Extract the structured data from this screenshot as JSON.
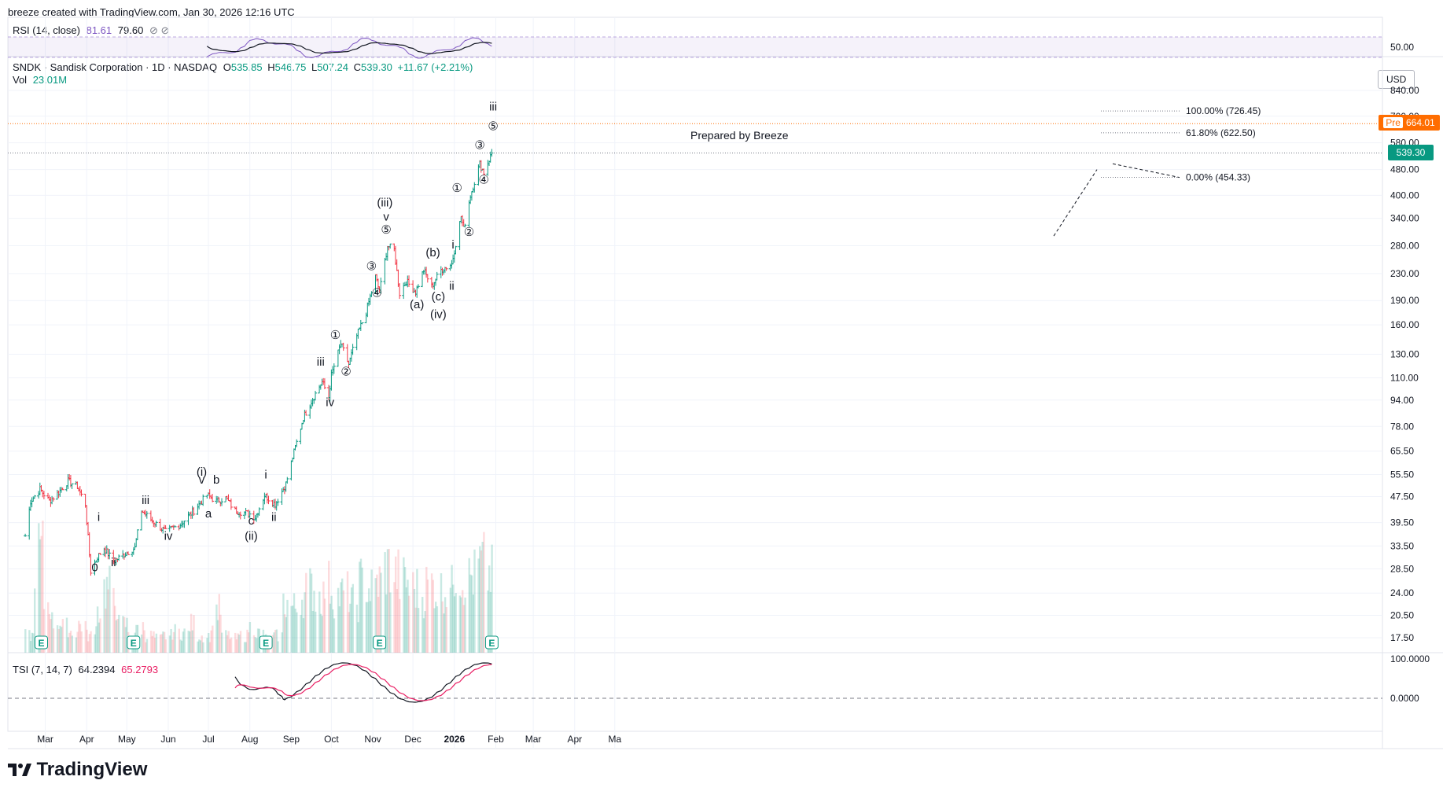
{
  "header": {
    "credit": "breeze created with TradingView.com, Jan 30, 2026 12:16 UTC"
  },
  "rsi": {
    "label": "RSI (14, close)",
    "value1": "81.61",
    "value2": "79.60",
    "icons": "⊘ ⊘",
    "tick": "50.00"
  },
  "main": {
    "symbol_line": "SNDK · Sandisk Corporation · 1D · NASDAQ",
    "o_label": "O",
    "o_value": "535.85",
    "h_label": "H",
    "h_value": "546.75",
    "l_label": "L",
    "l_value": "507.24",
    "c_label": "C",
    "c_value": "539.30",
    "change": "+11.67 (+2.21%)",
    "vol_label": "Vol",
    "vol_value": "23.01M",
    "prepared": "Prepared by Breeze",
    "currency": "USD",
    "pre_label": "Pre",
    "pre_price": "664.01",
    "last_price": "539.30"
  },
  "tsi": {
    "label": "TSI (7, 14, 7)",
    "value1": "64.2394",
    "value2": "65.2793",
    "ticks": [
      "100.0000",
      "0.0000"
    ]
  },
  "footer": {
    "brand": "TradingView"
  },
  "colors": {
    "up": "#089981",
    "down": "#f23645",
    "rsi": "#7e57c2",
    "tsi_signal": "#e91e63",
    "pre": "#ff6d00",
    "grid": "#f0f3fa"
  },
  "chart_data": {
    "type": "candlestick",
    "title": "SNDK · Sandisk Corporation · 1D · NASDAQ",
    "y_scale": "log",
    "y_ticks": [
      "840.00",
      "700.00",
      "580.00",
      "480.00",
      "400.00",
      "340.00",
      "280.00",
      "230.00",
      "190.00",
      "160.00",
      "130.00",
      "110.00",
      "94.00",
      "78.00",
      "65.50",
      "55.50",
      "47.50",
      "39.50",
      "33.50",
      "28.50",
      "24.00",
      "20.50",
      "17.50"
    ],
    "x_ticks": [
      "Mar",
      "Apr",
      "May",
      "Jun",
      "Jul",
      "Aug",
      "Sep",
      "Oct",
      "Nov",
      "Dec",
      "2026",
      "Feb",
      "Mar",
      "Apr",
      "Ma"
    ],
    "price_path": [
      [
        "2025-02-14",
        36
      ],
      [
        "2025-02-18",
        46
      ],
      [
        "2025-02-25",
        50
      ],
      [
        "2025-03-04",
        46
      ],
      [
        "2025-03-11",
        49
      ],
      [
        "2025-03-18",
        53
      ],
      [
        "2025-03-25",
        51
      ],
      [
        "2025-03-31",
        45
      ],
      [
        "2025-04-04",
        28
      ],
      [
        "2025-04-09",
        31
      ],
      [
        "2025-04-14",
        33
      ],
      [
        "2025-04-21",
        30
      ],
      [
        "2025-05-01",
        32
      ],
      [
        "2025-05-07",
        33
      ],
      [
        "2025-05-12",
        43
      ],
      [
        "2025-05-20",
        40
      ],
      [
        "2025-05-30",
        37
      ],
      [
        "2025-06-10",
        39
      ],
      [
        "2025-06-20",
        43
      ],
      [
        "2025-06-30",
        48
      ],
      [
        "2025-07-07",
        46
      ],
      [
        "2025-07-14",
        47
      ],
      [
        "2025-07-21",
        43
      ],
      [
        "2025-08-01",
        42
      ],
      [
        "2025-08-05",
        41
      ],
      [
        "2025-08-12",
        48
      ],
      [
        "2025-08-20",
        45
      ],
      [
        "2025-08-28",
        52
      ],
      [
        "2025-09-03",
        65
      ],
      [
        "2025-09-10",
        83
      ],
      [
        "2025-09-17",
        95
      ],
      [
        "2025-09-24",
        107
      ],
      [
        "2025-09-29",
        96
      ],
      [
        "2025-10-01",
        112
      ],
      [
        "2025-10-08",
        140
      ],
      [
        "2025-10-14",
        121
      ],
      [
        "2025-10-20",
        148
      ],
      [
        "2025-10-27",
        175
      ],
      [
        "2025-11-03",
        225
      ],
      [
        "2025-11-06",
        202
      ],
      [
        "2025-11-12",
        280
      ],
      [
        "2025-11-17",
        272
      ],
      [
        "2025-11-21",
        200
      ],
      [
        "2025-11-26",
        218
      ],
      [
        "2025-12-03",
        202
      ],
      [
        "2025-12-09",
        236
      ],
      [
        "2025-12-15",
        210
      ],
      [
        "2025-12-22",
        236
      ],
      [
        "2025-12-30",
        246
      ],
      [
        "2026-01-06",
        345
      ],
      [
        "2026-01-08",
        315
      ],
      [
        "2026-01-13",
        400
      ],
      [
        "2026-01-20",
        500
      ],
      [
        "2026-01-23",
        470
      ],
      [
        "2026-01-29",
        539.3
      ]
    ],
    "fib_levels": [
      {
        "label": "100.00% (726.45)",
        "value": 726.45
      },
      {
        "label": "61.80% (622.50)",
        "value": 622.5
      },
      {
        "label": "0.00% (454.33)",
        "value": 454.33
      }
    ],
    "wave_labels": [
      {
        "text": "0",
        "date": "2025-04-07",
        "price": 28
      },
      {
        "text": "i",
        "date": "2025-04-10",
        "price": 40
      },
      {
        "text": "ii",
        "date": "2025-04-21",
        "price": 29
      },
      {
        "text": "iii",
        "date": "2025-05-15",
        "price": 45
      },
      {
        "text": "iv",
        "date": "2025-06-01",
        "price": 35
      },
      {
        "text": "(i)",
        "date": "2025-06-26",
        "price": 55
      },
      {
        "text": "v",
        "date": "2025-06-26",
        "price": 52
      },
      {
        "text": "b",
        "date": "2025-07-07",
        "price": 52
      },
      {
        "text": "a",
        "date": "2025-07-01",
        "price": 41
      },
      {
        "text": "c",
        "date": "2025-08-02",
        "price": 39
      },
      {
        "text": "(ii)",
        "date": "2025-08-02",
        "price": 35
      },
      {
        "text": "i",
        "date": "2025-08-13",
        "price": 54
      },
      {
        "text": "ii",
        "date": "2025-08-19",
        "price": 40
      },
      {
        "text": "iii",
        "date": "2025-09-23",
        "price": 120
      },
      {
        "text": "iv",
        "date": "2025-09-30",
        "price": 90
      },
      {
        "text": "①",
        "date": "2025-10-04",
        "price": 145
      },
      {
        "text": "②",
        "date": "2025-10-12",
        "price": 112
      },
      {
        "text": "③",
        "date": "2025-10-31",
        "price": 236
      },
      {
        "text": "④",
        "date": "2025-11-04",
        "price": 195
      },
      {
        "text": "(iii)",
        "date": "2025-11-10",
        "price": 370
      },
      {
        "text": "v",
        "date": "2025-11-11",
        "price": 335
      },
      {
        "text": "⑤",
        "date": "2025-11-11",
        "price": 305
      },
      {
        "text": "(a)",
        "date": "2025-12-04",
        "price": 180
      },
      {
        "text": "(b)",
        "date": "2025-12-16",
        "price": 260
      },
      {
        "text": "(c)",
        "date": "2025-12-20",
        "price": 190
      },
      {
        "text": "(iv)",
        "date": "2025-12-20",
        "price": 168
      },
      {
        "text": "i",
        "date": "2025-12-31",
        "price": 275
      },
      {
        "text": "ii",
        "date": "2025-12-30",
        "price": 205
      },
      {
        "text": "①",
        "date": "2026-01-03",
        "price": 410
      },
      {
        "text": "②",
        "date": "2026-01-12",
        "price": 300
      },
      {
        "text": "③",
        "date": "2026-01-20",
        "price": 555
      },
      {
        "text": "④",
        "date": "2026-01-23",
        "price": 435
      },
      {
        "text": "⑤",
        "date": "2026-01-30",
        "price": 635
      },
      {
        "text": "iii",
        "date": "2026-01-30",
        "price": 728
      }
    ],
    "volume_relative": [
      0.12,
      0.7,
      0.35,
      0.22,
      0.18,
      0.15,
      0.2,
      0.12,
      0.3,
      0.45,
      0.35,
      0.2,
      0.15,
      0.18,
      0.12,
      0.1,
      0.12,
      0.15,
      0.14,
      0.2,
      0.12,
      0.12,
      0.3,
      0.12,
      0.1,
      0.12,
      0.18,
      0.14,
      0.1,
      0.12,
      0.35,
      0.32,
      0.4,
      0.45,
      0.4,
      0.48,
      0.4,
      0.42,
      0.35,
      0.5,
      0.45,
      0.5,
      0.6,
      0.55,
      0.5,
      0.45,
      0.4,
      0.48,
      0.44,
      0.45,
      0.58,
      0.52,
      0.54,
      0.62,
      0.55
    ]
  }
}
